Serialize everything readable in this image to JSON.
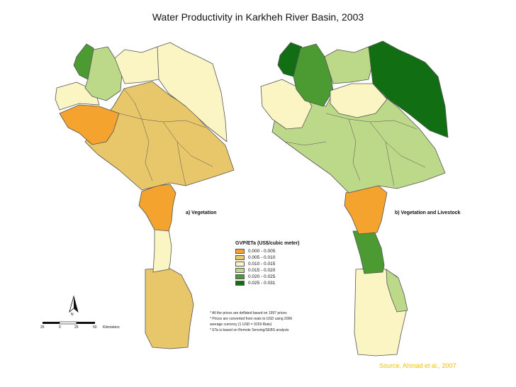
{
  "title": "Water Productivity in Karkheh River Basin, 2003",
  "panels": [
    {
      "label": "a) Vegetation"
    },
    {
      "label": "b) Vegetation and Livestock"
    }
  ],
  "legend": {
    "title": "GVP/ETa (US$/cubic meter)",
    "classes": [
      {
        "label": "0.000 - 0.005",
        "color": "#f4a32e"
      },
      {
        "label": "0.005 - 0.010",
        "color": "#e8c66a"
      },
      {
        "label": "0.010 - 0.015",
        "color": "#fbf5c4"
      },
      {
        "label": "0.015 - 0.020",
        "color": "#bcd98a"
      },
      {
        "label": "0.020 - 0.025",
        "color": "#4c9a32"
      },
      {
        "label": "0.025 - 0.031",
        "color": "#126e12"
      }
    ]
  },
  "notes": [
    "* All the prices are deflated based on 1997 prices",
    "* Prices are converted from reals to USD using 2006",
    "average currency (1 USD = 9159 Rials)",
    "* ETa is based on Remote Sensing/SEBS analysis"
  ],
  "scale_bar": {
    "ticks": [
      "25",
      "0",
      "25",
      "50"
    ],
    "unit": "Kilometers",
    "north": "N"
  },
  "source": "Source, Ahmad et al., 2007"
}
